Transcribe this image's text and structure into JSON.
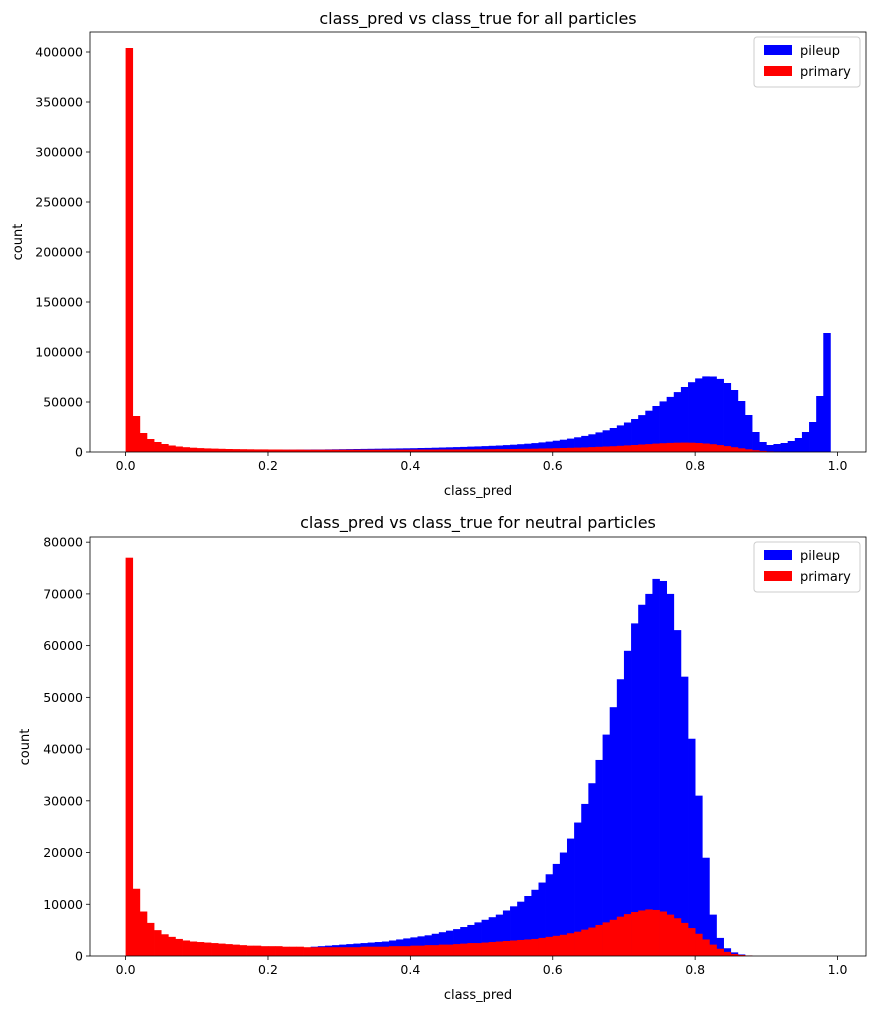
{
  "chart_data": [
    {
      "type": "bar",
      "histogram": true,
      "stacked": false,
      "title": "class_pred vs class_true for all particles",
      "xlabel": "class_pred",
      "ylabel": "count",
      "xlim": [
        -0.05,
        1.04
      ],
      "ylim": [
        0,
        420000
      ],
      "xticks": [
        0.0,
        0.2,
        0.4,
        0.6,
        0.8,
        1.0
      ],
      "xtick_labels": [
        "0.0",
        "0.2",
        "0.4",
        "0.6",
        "0.8",
        "1.0"
      ],
      "yticks": [
        0,
        50000,
        100000,
        150000,
        200000,
        250000,
        300000,
        350000,
        400000
      ],
      "ytick_labels": [
        "0",
        "50000",
        "100000",
        "150000",
        "200000",
        "250000",
        "300000",
        "350000",
        "400000"
      ],
      "bin_start": 0.0,
      "bin_width": 0.01,
      "legend_position": "top-right",
      "series": [
        {
          "name": "pileup",
          "color": "#0000ff",
          "values": [
            0,
            3000,
            3000,
            3000,
            3000,
            3000,
            2800,
            2800,
            2700,
            2700,
            2600,
            2600,
            2500,
            2500,
            2500,
            2400,
            2400,
            2400,
            2300,
            2300,
            2300,
            2300,
            2300,
            2300,
            2400,
            2400,
            2500,
            2500,
            2600,
            2700,
            2800,
            2900,
            3000,
            3100,
            3200,
            3300,
            3400,
            3500,
            3600,
            3700,
            3800,
            4000,
            4100,
            4300,
            4500,
            4700,
            4900,
            5100,
            5400,
            5600,
            5900,
            6200,
            6500,
            6900,
            7300,
            7800,
            8300,
            8900,
            9600,
            10400,
            11300,
            12300,
            13400,
            14700,
            16100,
            17700,
            19600,
            21700,
            24000,
            26600,
            29500,
            33000,
            36900,
            41300,
            46000,
            50600,
            55100,
            59900,
            65000,
            69800,
            73600,
            75600,
            75500,
            73100,
            69000,
            62000,
            51000,
            37000,
            20000,
            10000,
            7000,
            8000,
            9000,
            11000,
            14000,
            20000,
            30000,
            56000,
            119000,
            0
          ]
        },
        {
          "name": "primary",
          "color": "#ff0000",
          "values": [
            404000,
            36000,
            19000,
            13000,
            10000,
            8000,
            6500,
            5500,
            4800,
            4300,
            3900,
            3600,
            3400,
            3200,
            3000,
            2900,
            2800,
            2700,
            2600,
            2600,
            2500,
            2500,
            2400,
            2400,
            2400,
            2300,
            2300,
            2300,
            2300,
            2300,
            2300,
            2300,
            2300,
            2300,
            2300,
            2300,
            2300,
            2300,
            2300,
            2300,
            2400,
            2400,
            2400,
            2400,
            2500,
            2500,
            2500,
            2600,
            2600,
            2700,
            2700,
            2800,
            2900,
            2900,
            3000,
            3100,
            3200,
            3300,
            3500,
            3600,
            3800,
            4000,
            4200,
            4400,
            4600,
            4900,
            5200,
            5500,
            5800,
            6200,
            6600,
            7000,
            7500,
            7900,
            8400,
            8800,
            9100,
            9300,
            9400,
            9300,
            9000,
            8500,
            7800,
            6900,
            5900,
            4800,
            3700,
            2700,
            1800,
            1100,
            600,
            300,
            100,
            0,
            0,
            0,
            0,
            0,
            0,
            0
          ]
        }
      ],
      "legend": [
        "pileup",
        "primary"
      ]
    },
    {
      "type": "bar",
      "histogram": true,
      "stacked": false,
      "title": "class_pred vs class_true for neutral particles",
      "xlabel": "class_pred",
      "ylabel": "count",
      "xlim": [
        -0.05,
        1.04
      ],
      "ylim": [
        0,
        81000
      ],
      "xticks": [
        0.0,
        0.2,
        0.4,
        0.6,
        0.8,
        1.0
      ],
      "xtick_labels": [
        "0.0",
        "0.2",
        "0.4",
        "0.6",
        "0.8",
        "1.0"
      ],
      "yticks": [
        0,
        10000,
        20000,
        30000,
        40000,
        50000,
        60000,
        70000,
        80000
      ],
      "ytick_labels": [
        "0",
        "10000",
        "20000",
        "30000",
        "40000",
        "50000",
        "60000",
        "70000",
        "80000"
      ],
      "bin_start": 0.0,
      "bin_width": 0.01,
      "legend_position": "top-right",
      "series": [
        {
          "name": "pileup",
          "color": "#0000ff",
          "values": [
            0,
            0,
            0,
            0,
            0,
            0,
            0,
            0,
            0,
            0,
            0,
            0,
            0,
            0,
            0,
            0,
            0,
            0,
            0,
            0,
            0,
            0,
            0,
            0,
            0,
            0,
            1800,
            1900,
            2000,
            2100,
            2200,
            2300,
            2400,
            2500,
            2600,
            2700,
            2800,
            3000,
            3200,
            3400,
            3600,
            3800,
            4000,
            4300,
            4600,
            4900,
            5200,
            5600,
            6000,
            6500,
            7000,
            7500,
            8000,
            8800,
            9600,
            10500,
            11600,
            12800,
            14200,
            15800,
            17800,
            20000,
            22700,
            25800,
            29400,
            33400,
            37900,
            42800,
            48100,
            53500,
            59000,
            64300,
            67900,
            70000,
            72900,
            72500,
            70000,
            63000,
            54000,
            42000,
            31000,
            19000,
            8000,
            3500,
            1500,
            700,
            300,
            100,
            0,
            0,
            0,
            0,
            0,
            0,
            0,
            0,
            0,
            0,
            0,
            0
          ]
        },
        {
          "name": "primary",
          "color": "#ff0000",
          "values": [
            77000,
            13000,
            8600,
            6400,
            5000,
            4200,
            3700,
            3300,
            3000,
            2800,
            2700,
            2600,
            2500,
            2400,
            2300,
            2200,
            2100,
            2000,
            2000,
            1900,
            1900,
            1900,
            1800,
            1800,
            1800,
            1700,
            1700,
            1700,
            1700,
            1700,
            1700,
            1700,
            1700,
            1800,
            1800,
            1800,
            1800,
            1900,
            1900,
            1900,
            2000,
            2000,
            2100,
            2100,
            2200,
            2200,
            2300,
            2400,
            2500,
            2500,
            2600,
            2700,
            2800,
            2900,
            3000,
            3100,
            3200,
            3300,
            3500,
            3700,
            3900,
            4100,
            4400,
            4700,
            5100,
            5500,
            6000,
            6500,
            7000,
            7600,
            8100,
            8500,
            8800,
            9000,
            8900,
            8600,
            8000,
            7300,
            6400,
            5400,
            4300,
            3200,
            2200,
            1400,
            800,
            400,
            200,
            100,
            0,
            0,
            0,
            0,
            0,
            0,
            0,
            0,
            0,
            0,
            0,
            0
          ]
        }
      ],
      "legend": [
        "pileup",
        "primary"
      ]
    }
  ]
}
